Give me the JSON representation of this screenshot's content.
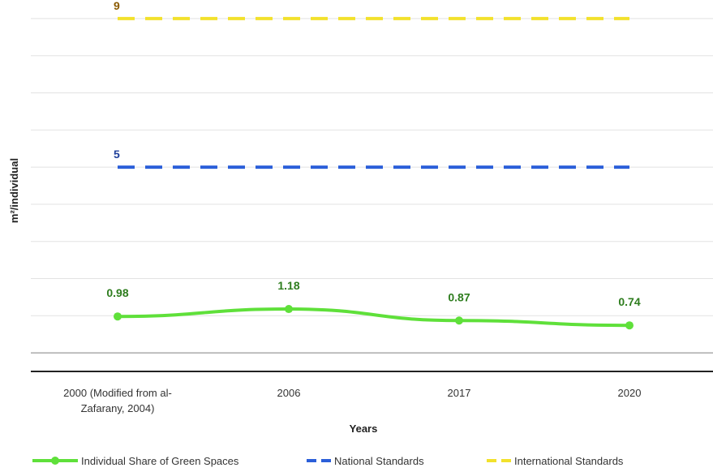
{
  "chart_data": {
    "type": "line",
    "categories": [
      "2000 (Modified from al-Zafarany, 2004)",
      "2006",
      "2017",
      "2020"
    ],
    "category_lines": [
      [
        "2000 (Modified from al-",
        "Zafarany, 2004)"
      ],
      [
        "2006"
      ],
      [
        "2017"
      ],
      [
        "2020"
      ]
    ],
    "xlabel": "Years",
    "ylabel": "m²/individual",
    "ylim": [
      -0.5,
      9.5
    ],
    "grid": true,
    "legend": "bottom",
    "series": [
      {
        "name": "Individual Share of Green Spaces",
        "values": [
          0.98,
          1.18,
          0.87,
          0.74
        ],
        "labels": [
          "0.98",
          "1.18",
          "0.87",
          "0.74"
        ],
        "color": "#5fe03a",
        "label_color": "#2e7d1e",
        "style": "solid-markers"
      },
      {
        "name": "National Standards",
        "values": [
          5,
          5,
          5,
          5
        ],
        "labels": [
          "5",
          "",
          "",
          ""
        ],
        "color": "#2b5fd9",
        "label_color": "#1f3f9a",
        "style": "dashed"
      },
      {
        "name": "International Standards",
        "values": [
          9,
          9,
          9,
          9
        ],
        "labels": [
          "9",
          "",
          "",
          ""
        ],
        "color": "#f2e12c",
        "label_color": "#8a5a00",
        "style": "dashed"
      }
    ]
  }
}
